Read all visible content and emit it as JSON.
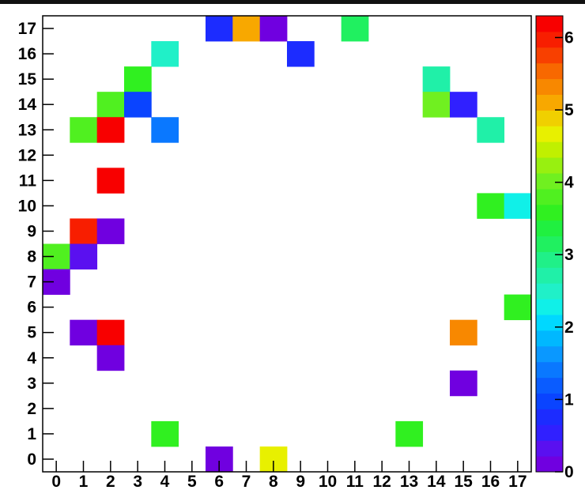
{
  "chart_data": {
    "type": "heatmap",
    "title": "",
    "xlabel": "",
    "ylabel": "",
    "x_categories": [
      0,
      1,
      2,
      3,
      4,
      5,
      6,
      7,
      8,
      9,
      10,
      11,
      12,
      13,
      14,
      15,
      16,
      17
    ],
    "y_categories": [
      0,
      1,
      2,
      3,
      4,
      5,
      6,
      7,
      8,
      9,
      10,
      11,
      12,
      13,
      14,
      15,
      16,
      17
    ],
    "xlim": [
      0,
      18
    ],
    "ylim": [
      0,
      18
    ],
    "z_range": [
      0,
      6.3
    ],
    "colorbar_ticks": [
      0,
      1,
      2,
      3,
      4,
      5,
      6
    ],
    "grid": false,
    "palette": [
      "#7000e0",
      "#5a10f0",
      "#3020ff",
      "#1c2cff",
      "#0a44ff",
      "#0a5cff",
      "#0a78ff",
      "#0a98ff",
      "#00b8ff",
      "#00d8ff",
      "#10f0e8",
      "#20f0c8",
      "#20f0a8",
      "#20f088",
      "#20f060",
      "#20f040",
      "#30f020",
      "#50f020",
      "#70f020",
      "#98f010",
      "#c0f000",
      "#e8f000",
      "#f0d000",
      "#f8a800",
      "#f88800",
      "#f86800",
      "#f84000",
      "#f81e00",
      "#f80000"
    ],
    "cells": [
      {
        "x": 6,
        "y": 17,
        "z": 0.8
      },
      {
        "x": 7,
        "y": 17,
        "z": 5.2
      },
      {
        "x": 8,
        "y": 17,
        "z": 0.2
      },
      {
        "x": 11,
        "y": 17,
        "z": 3.1
      },
      {
        "x": 4,
        "y": 16,
        "z": 2.4
      },
      {
        "x": 9,
        "y": 16,
        "z": 0.7
      },
      {
        "x": 3,
        "y": 15,
        "z": 3.6
      },
      {
        "x": 14,
        "y": 15,
        "z": 2.8
      },
      {
        "x": 2,
        "y": 14,
        "z": 3.7
      },
      {
        "x": 3,
        "y": 14,
        "z": 1.0
      },
      {
        "x": 14,
        "y": 14,
        "z": 4.0
      },
      {
        "x": 15,
        "y": 14,
        "z": 0.6
      },
      {
        "x": 1,
        "y": 13,
        "z": 3.7
      },
      {
        "x": 2,
        "y": 13,
        "z": 6.3
      },
      {
        "x": 4,
        "y": 13,
        "z": 1.4
      },
      {
        "x": 16,
        "y": 13,
        "z": 2.8
      },
      {
        "x": 2,
        "y": 11,
        "z": 6.2
      },
      {
        "x": 16,
        "y": 10,
        "z": 3.5
      },
      {
        "x": 17,
        "y": 10,
        "z": 2.3
      },
      {
        "x": 1,
        "y": 9,
        "z": 6.0
      },
      {
        "x": 2,
        "y": 9,
        "z": 0.2
      },
      {
        "x": 0,
        "y": 8,
        "z": 3.7
      },
      {
        "x": 1,
        "y": 8,
        "z": 0.4
      },
      {
        "x": 0,
        "y": 7,
        "z": 0.1
      },
      {
        "x": 17,
        "y": 6,
        "z": 3.6
      },
      {
        "x": 1,
        "y": 5,
        "z": 0.2
      },
      {
        "x": 2,
        "y": 5,
        "z": 6.3
      },
      {
        "x": 15,
        "y": 5,
        "z": 5.3
      },
      {
        "x": 2,
        "y": 4,
        "z": 0.2
      },
      {
        "x": 15,
        "y": 3,
        "z": 0.2
      },
      {
        "x": 4,
        "y": 1,
        "z": 3.5
      },
      {
        "x": 13,
        "y": 1,
        "z": 3.5
      },
      {
        "x": 6,
        "y": 0,
        "z": 0.2
      },
      {
        "x": 8,
        "y": 0,
        "z": 4.7
      }
    ]
  }
}
